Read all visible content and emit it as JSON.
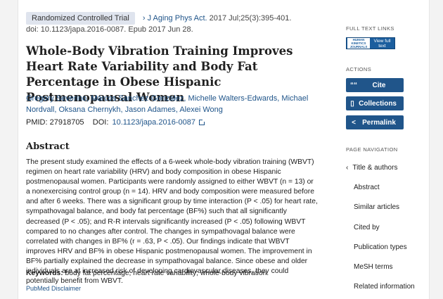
{
  "header": {
    "publication_type": "Randomized Controlled Trial",
    "journal": "J Aging Phys Act.",
    "citation": "2017 Jul;25(3):395-401.",
    "doi_epub": "doi: 10.1123/japa.2016-0087. Epub 2017 Jun 28."
  },
  "article": {
    "title": "Whole-Body Vibration Training Improves Heart Rate Variability and Body Fat Percentage in Obese Hispanic Postmenopausal Women",
    "authors": [
      "Gregory Severino",
      "Marcos Sanchez-Gonzalez",
      "Michelle Walters-Edwards",
      "Michael Nordvall",
      "Oksana Chernykh",
      "Jason Adames",
      "Alexei Wong"
    ],
    "pmid_label": "PMID: 27918705",
    "doi_label": "DOI:",
    "doi_value": "10.1123/japa.2016-0087",
    "abstract_heading": "Abstract",
    "abstract_text": "The present study examined the effects of a 6-week whole-body vibration training (WBVT) regimen on heart rate variability (HRV) and body composition in obese Hispanic postmenopausal women. Participants were randomly assigned to either WBVT (n = 13) or a nonexercising control group (n = 14). HRV and body composition were measured before and after 6 weeks. There was a significant group by time interaction (P < .05) for heart rate, sympathovagal balance, and body fat percentage (BF%) such that all significantly decreased (P < .05); and R-R intervals significantly increased (P < .05) following WBVT compared to no changes after control. The changes in sympathovagal balance were correlated with changes in BF% (r = .63, P < .05). Our findings indicate that WBVT improves HRV and BF% in obese Hispanic postmenopausal women. The improvement in BF% partially explained the decrease in sympathovagal balance. Since obese and older individuals are at increased risk of developing cardiovascular diseases, they could potentially benefit from WBVT.",
    "keywords_label": "Keywords:",
    "keywords": "body fat percentage; heart rate variability; whole-body vibration.",
    "disclaimer": "PubMed Disclaimer"
  },
  "sidebar": {
    "full_text_heading": "FULL TEXT LINKS",
    "full_text_logo": "HUMAN KINETICS JOURNALS",
    "full_text_button": "View full text",
    "actions_heading": "ACTIONS",
    "actions": [
      {
        "icon": "quote-icon",
        "glyph": "““",
        "label": "Cite"
      },
      {
        "icon": "bookmark-icon",
        "glyph": "▯",
        "label": "Collections"
      },
      {
        "icon": "share-icon",
        "glyph": "<",
        "label": "Permalink"
      }
    ],
    "page_nav_heading": "PAGE NAVIGATION",
    "nav": [
      "Title & authors",
      "Abstract",
      "Similar articles",
      "Cited by",
      "Publication types",
      "MeSH terms",
      "Related information"
    ]
  }
}
